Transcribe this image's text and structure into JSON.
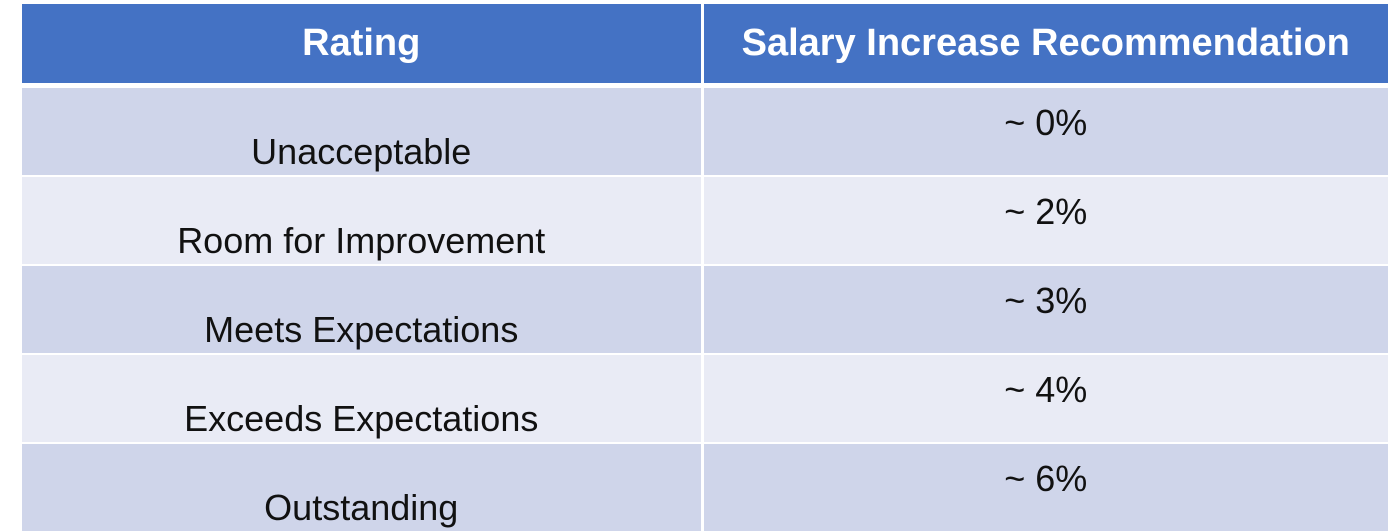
{
  "table": {
    "headers": {
      "rating": "Rating",
      "salary": "Salary Increase Recommendation"
    },
    "rows": [
      {
        "rating": "Unacceptable",
        "salary": "~ 0%"
      },
      {
        "rating": "Room for Improvement",
        "salary": "~ 2%"
      },
      {
        "rating": "Meets Expectations",
        "salary": "~ 3%"
      },
      {
        "rating": "Exceeds Expectations",
        "salary": "~ 4%"
      },
      {
        "rating": "Outstanding",
        "salary": "~ 6%"
      }
    ]
  },
  "colors": {
    "header_background": "#4472c4",
    "header_text": "#ffffff",
    "row_odd_background": "#cfd5ea",
    "row_even_background": "#e9ebf5",
    "body_text": "#111111"
  }
}
